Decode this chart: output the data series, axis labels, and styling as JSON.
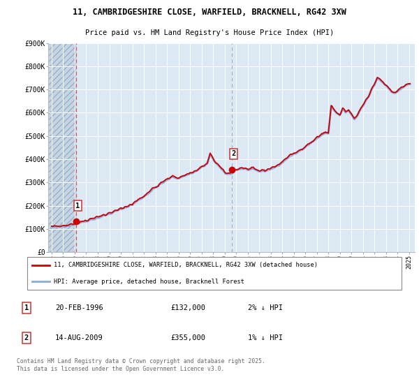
{
  "title": "11, CAMBRIDGESHIRE CLOSE, WARFIELD, BRACKNELL, RG42 3XW",
  "subtitle": "Price paid vs. HM Land Registry's House Price Index (HPI)",
  "background_color": "#ffffff",
  "plot_bg_color": "#dce9f5",
  "grid_color": "#ffffff",
  "ylim": [
    0,
    900000
  ],
  "yticks": [
    0,
    100000,
    200000,
    300000,
    400000,
    500000,
    600000,
    700000,
    800000,
    900000
  ],
  "ytick_labels": [
    "£0",
    "£100K",
    "£200K",
    "£300K",
    "£400K",
    "£500K",
    "£600K",
    "£700K",
    "£800K",
    "£900K"
  ],
  "xlim_start": 1993.7,
  "xlim_end": 2025.5,
  "sale1_x": 1996.13,
  "sale1_y": 132000,
  "sale1_label": "1",
  "sale2_x": 2009.62,
  "sale2_y": 355000,
  "sale2_label": "2",
  "line_color_red": "#cc0000",
  "line_color_blue": "#88aadd",
  "marker_color": "#cc0000",
  "dashed_line_color_red": "#ee4444",
  "dashed_line_color_grey": "#aaaaaa",
  "legend_label_red": "11, CAMBRIDGESHIRE CLOSE, WARFIELD, BRACKNELL, RG42 3XW (detached house)",
  "legend_label_blue": "HPI: Average price, detached house, Bracknell Forest",
  "table_row1": [
    "1",
    "20-FEB-1996",
    "£132,000",
    "2% ↓ HPI"
  ],
  "table_row2": [
    "2",
    "14-AUG-2009",
    "£355,000",
    "1% ↓ HPI"
  ],
  "footer": "Contains HM Land Registry data © Crown copyright and database right 2025.\nThis data is licensed under the Open Government Licence v3.0."
}
